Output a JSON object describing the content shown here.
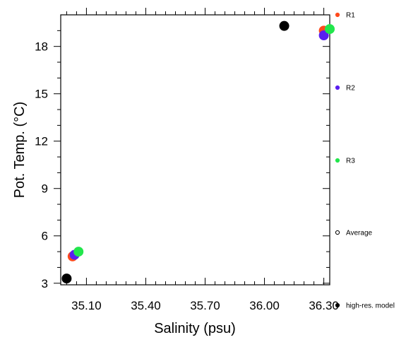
{
  "chart_data": {
    "type": "scatter",
    "xlabel": "Salinity (psu)",
    "ylabel": "Pot. Temp. (°C)",
    "xlim": [
      34.97,
      36.33
    ],
    "ylim": [
      2.9,
      20.0
    ],
    "x_ticks": [
      35.1,
      35.4,
      35.7,
      36.0,
      36.3
    ],
    "x_tick_labels": [
      "35.10",
      "35.40",
      "35.70",
      "36.00",
      "36.30"
    ],
    "y_ticks": [
      3,
      6,
      9,
      12,
      15,
      18
    ],
    "y_tick_labels": [
      "3",
      "6",
      "9",
      "12",
      "15",
      "18"
    ],
    "legend_placement": "right, outside plot",
    "series": [
      {
        "name": "R1",
        "color": "#ff4a1c",
        "marker": "filled-circle",
        "points": [
          {
            "x": 35.03,
            "y": 4.7
          },
          {
            "x": 36.3,
            "y": 19.0
          }
        ]
      },
      {
        "name": "R2",
        "color": "#5a1ff0",
        "marker": "filled-circle",
        "points": [
          {
            "x": 35.04,
            "y": 4.8
          },
          {
            "x": 36.3,
            "y": 18.7
          }
        ]
      },
      {
        "name": "R3",
        "color": "#22e64c",
        "marker": "filled-circle",
        "points": [
          {
            "x": 35.06,
            "y": 5.0
          },
          {
            "x": 36.33,
            "y": 19.1
          }
        ]
      },
      {
        "name": "Average",
        "color": "#000000",
        "marker": "open-circle",
        "points": []
      },
      {
        "name": "high-res. model",
        "color": "#000000",
        "marker": "filled-circle",
        "points": [
          {
            "x": 35.0,
            "y": 3.3
          },
          {
            "x": 36.1,
            "y": 19.3
          }
        ]
      }
    ]
  }
}
